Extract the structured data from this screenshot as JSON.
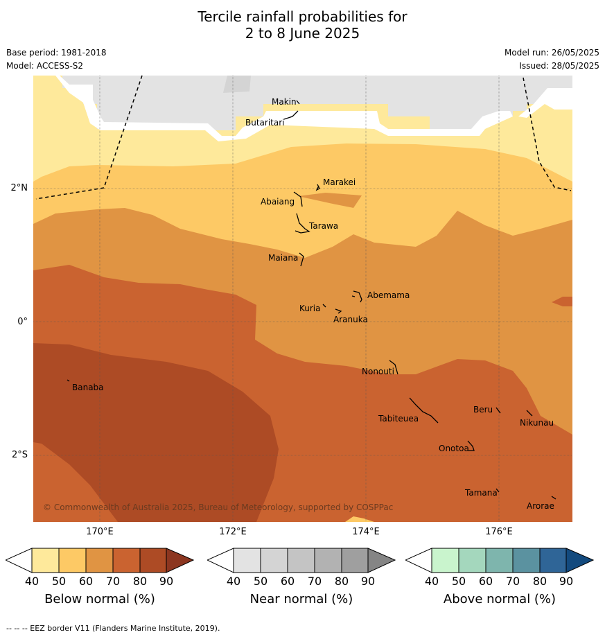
{
  "title_line1": "Tercile rainfall probabilities for",
  "title_line2": "2 to 8 June 2025",
  "base_period": "Base period: 1981-2018",
  "model": "Model: ACCESS-S2",
  "model_run": "Model run: 26/05/2025",
  "issued": "Issued: 28/05/2025",
  "longitude_labels": [
    "170°E",
    "172°E",
    "174°E",
    "176°E"
  ],
  "latitude_labels": [
    "2°N",
    "0°",
    "2°S"
  ],
  "places": [
    "Makin",
    "Butaritari",
    "Marakei",
    "Abaiang",
    "Tarawa",
    "Maiana",
    "Abemama",
    "Kuria",
    "Aranuka",
    "Banaba",
    "Nonouti",
    "Tabiteuea",
    "Beru",
    "Nikunau",
    "Onotoa",
    "Tamana",
    "Arorae"
  ],
  "copyright": "© Commonwealth of Australia 2025, Bureau of Meteorology, supported by COSPPac",
  "colorbars": [
    {
      "label": "Below normal (%)",
      "ticks": [
        "40",
        "50",
        "60",
        "70",
        "80",
        "90"
      ],
      "colors": [
        "#fee99b",
        "#fdc965",
        "#e09443",
        "#ca6330",
        "#ad4b25",
        "#8c3620"
      ]
    },
    {
      "label": "Near normal (%)",
      "ticks": [
        "40",
        "50",
        "60",
        "70",
        "80",
        "90"
      ],
      "colors": [
        "#e3e3e3",
        "#d4d4d4",
        "#c4c4c4",
        "#b2b2b2",
        "#9f9f9f",
        "#858585"
      ]
    },
    {
      "label": "Above normal (%)",
      "ticks": [
        "40",
        "50",
        "60",
        "70",
        "80",
        "90"
      ],
      "colors": [
        "#c9f4cd",
        "#a4d7bd",
        "#7eb5ad",
        "#5b92a0",
        "#2f6597",
        "#134a7e"
      ]
    }
  ],
  "footer": "--  --  -- EEZ border V11 (Flanders Marine Institute, 2019)."
}
